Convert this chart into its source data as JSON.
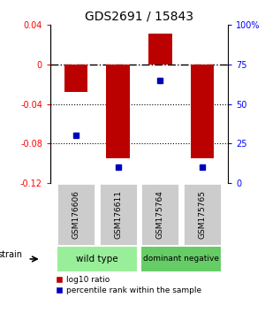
{
  "title": "GDS2691 / 15843",
  "samples": [
    "GSM176606",
    "GSM176611",
    "GSM175764",
    "GSM175765"
  ],
  "log10_ratio": [
    -0.028,
    -0.095,
    0.031,
    -0.095
  ],
  "percentile_rank": [
    30,
    10,
    65,
    10
  ],
  "ylim_left": [
    -0.12,
    0.04
  ],
  "ylim_right": [
    0,
    100
  ],
  "yticks_left": [
    0.04,
    0,
    -0.04,
    -0.08,
    -0.12
  ],
  "yticks_right": [
    100,
    75,
    50,
    25,
    0
  ],
  "ytick_labels_left": [
    "0.04",
    "0",
    "-0.04",
    "-0.08",
    "-0.12"
  ],
  "ytick_labels_right": [
    "100%",
    "75",
    "50",
    "25",
    "0"
  ],
  "bar_color": "#bb0000",
  "dot_color": "#0000bb",
  "groups": [
    {
      "label": "wild type",
      "samples_idx": [
        0,
        1
      ],
      "color": "#99ee99"
    },
    {
      "label": "dominant negative",
      "samples_idx": [
        2,
        3
      ],
      "color": "#66cc66"
    }
  ],
  "legend_bar_label": "log10 ratio",
  "legend_dot_label": "percentile rank within the sample",
  "sample_box_color": "#cccccc",
  "strain_label": "strain",
  "bar_width": 0.55
}
